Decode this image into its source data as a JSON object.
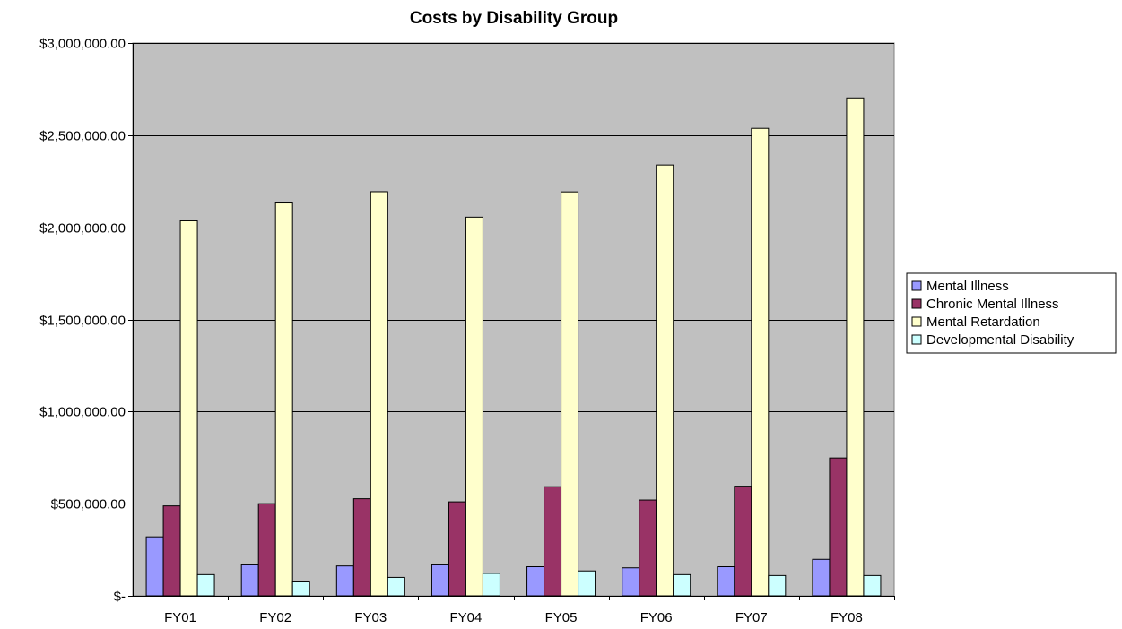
{
  "chart_data": {
    "type": "bar",
    "title": "Costs by Disability Group",
    "xlabel": "",
    "ylabel": "",
    "categories": [
      "FY01",
      "FY02",
      "FY03",
      "FY04",
      "FY05",
      "FY06",
      "FY07",
      "FY08"
    ],
    "y_ticks": [
      {
        "value": 0,
        "label": "$-"
      },
      {
        "value": 500000,
        "label": "$500,000.00"
      },
      {
        "value": 1000000,
        "label": "$1,000,000.00"
      },
      {
        "value": 1500000,
        "label": "$1,500,000.00"
      },
      {
        "value": 2000000,
        "label": "$2,000,000.00"
      },
      {
        "value": 2500000,
        "label": "$2,500,000.00"
      },
      {
        "value": 3000000,
        "label": "$3,000,000.00"
      }
    ],
    "ylim": [
      0,
      3000000
    ],
    "grid": true,
    "legend_position": "right",
    "plot_background": "#c0c0c0",
    "series": [
      {
        "name": "Mental Illness",
        "color": "#9999ff",
        "values": [
          320000,
          168000,
          162000,
          168000,
          158000,
          152000,
          158000,
          198000
        ]
      },
      {
        "name": "Chronic Mental Illness",
        "color": "#993366",
        "values": [
          488000,
          500000,
          527000,
          510000,
          592000,
          520000,
          595000,
          748000
        ]
      },
      {
        "name": "Mental Retardation",
        "color": "#ffffcc",
        "values": [
          2035000,
          2132000,
          2193000,
          2055000,
          2192000,
          2338000,
          2537000,
          2702000
        ]
      },
      {
        "name": "Developmental Disability",
        "color": "#ccffff",
        "values": [
          115000,
          80000,
          100000,
          122000,
          135000,
          115000,
          110000,
          110000
        ]
      }
    ]
  }
}
